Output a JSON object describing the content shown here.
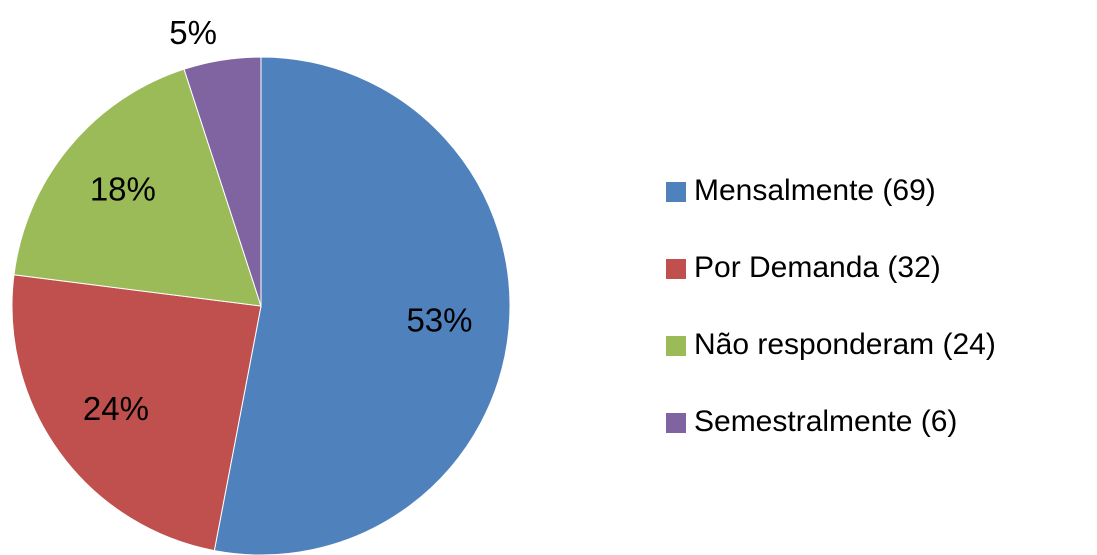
{
  "chart_data": {
    "type": "pie",
    "categories": [
      "Mensalmente (69)",
      "Por Demanda (32)",
      "Não responderam (24)",
      "Semestralmente (6)"
    ],
    "values": [
      53,
      24,
      18,
      5
    ],
    "value_labels": [
      "53%",
      "24%",
      "18%",
      "5%"
    ],
    "colors": [
      "#4f81bd",
      "#c0504d",
      "#9bbb59",
      "#8064a2"
    ],
    "legend": "right"
  }
}
